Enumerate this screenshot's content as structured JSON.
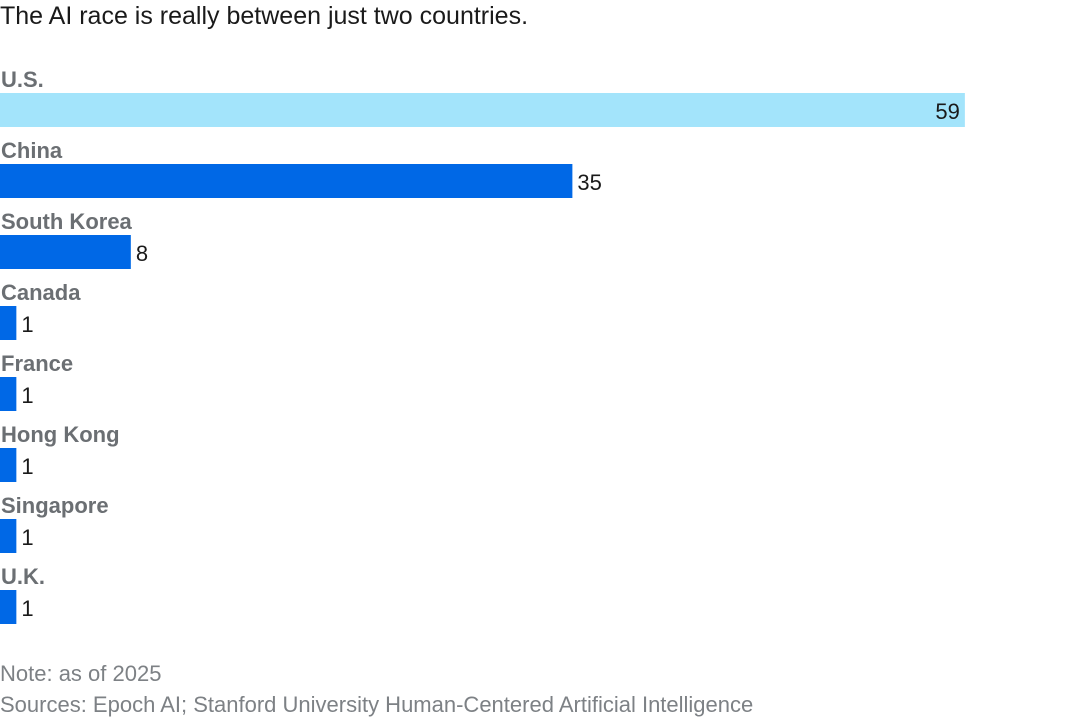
{
  "chart_data": {
    "type": "bar",
    "orientation": "horizontal",
    "title": "The AI race is really between just two countries.",
    "categories": [
      "U.S.",
      "China",
      "South Korea",
      "Canada",
      "France",
      "Hong Kong",
      "Singapore",
      "U.K."
    ],
    "values": [
      59,
      35,
      8,
      1,
      1,
      1,
      1,
      1
    ],
    "xlim": [
      0,
      65
    ],
    "grid": false,
    "legend": "none",
    "colors": {
      "highlight": "#a3e4fb",
      "bar": "#0068e6",
      "category_text": "#6b6f73",
      "value_text": "#1a1a1a"
    },
    "highlight_category": "U.S."
  },
  "footer": {
    "note": "Note: as of 2025",
    "sources": "Sources: Epoch AI; Stanford University Human-Centered Artificial Intelligence"
  }
}
